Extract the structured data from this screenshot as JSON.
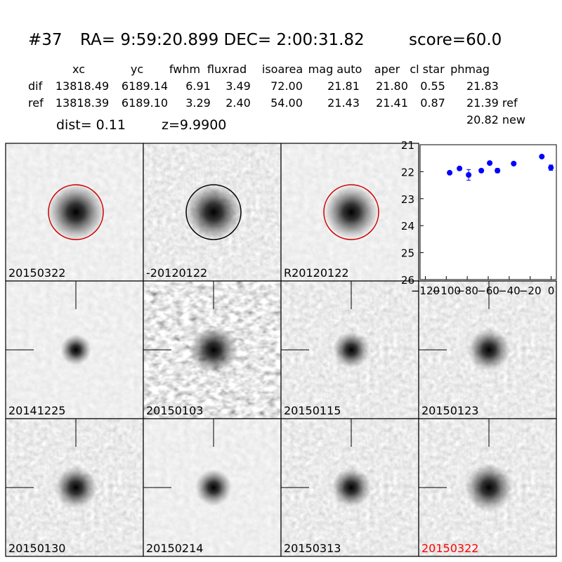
{
  "header": {
    "id": "#37",
    "coords": "RA= 9:59:20.899 DEC= 2:00:31.82",
    "score": "score=60.0"
  },
  "table": {
    "columns": [
      "xc",
      "yc",
      "fwhm",
      "fluxrad",
      "isoarea",
      "mag auto",
      "aper",
      "cl star",
      "phmag"
    ],
    "rows": [
      [
        "dif",
        "13818.49",
        "6189.14",
        "6.91",
        "3.49",
        "72.00",
        "21.81",
        "21.80",
        "0.55",
        "21.83"
      ],
      [
        "ref",
        "13818.39",
        "6189.10",
        "3.29",
        "2.40",
        "54.00",
        "21.43",
        "21.41",
        "0.87",
        "21.39 ref"
      ]
    ],
    "extra": "20.82 new"
  },
  "dist": "dist=  0.11",
  "z": "z=9.9900",
  "stamps": [
    {
      "label": "20150322",
      "marker": "circle",
      "marker_color": "#cc0000",
      "label_color": "#000000"
    },
    {
      "label": "-20120122",
      "marker": "circle",
      "marker_color": "#000000",
      "label_color": "#000000"
    },
    {
      "label": "R20120122",
      "marker": "circle",
      "marker_color": "#cc0000",
      "label_color": "#000000"
    },
    {
      "label": "20141225",
      "marker": "cross",
      "marker_color": "#000000",
      "label_color": "#000000"
    },
    {
      "label": "20150103",
      "marker": "cross",
      "marker_color": "#000000",
      "label_color": "#000000"
    },
    {
      "label": "20150115",
      "marker": "cross",
      "marker_color": "#000000",
      "label_color": "#000000"
    },
    {
      "label": "20150123",
      "marker": "cross",
      "marker_color": "#000000",
      "label_color": "#000000"
    },
    {
      "label": "20150130",
      "marker": "cross",
      "marker_color": "#000000",
      "label_color": "#000000"
    },
    {
      "label": "20150214",
      "marker": "cross",
      "marker_color": "#000000",
      "label_color": "#000000"
    },
    {
      "label": "20150313",
      "marker": "cross",
      "marker_color": "#000000",
      "label_color": "#000000"
    },
    {
      "label": "20150322",
      "marker": "cross",
      "marker_color": "#000000",
      "label_color": "#ff0000"
    }
  ],
  "chart_data": {
    "type": "scatter",
    "x": [
      -96.8,
      -87.4,
      -78.7,
      -66.6,
      -58.6,
      -51.2,
      -35.7,
      -8.9,
      -0.2
    ],
    "series": [
      {
        "color": "#0000ff",
        "values": [
          22.04,
          21.88,
          22.12,
          21.96,
          21.68,
          21.96,
          21.7,
          21.44,
          21.85
        ],
        "errors": [
          0.05,
          0.05,
          0.2,
          0.06,
          0.05,
          0.08,
          0.05,
          0.05,
          0.1
        ]
      }
    ],
    "xlim": [
      -125,
      5
    ],
    "ylim": [
      26,
      21
    ],
    "xticks": [
      -120,
      -100,
      -80,
      -60,
      -40,
      -20,
      0
    ],
    "yticks": [
      21,
      22,
      23,
      24,
      25,
      26
    ]
  }
}
